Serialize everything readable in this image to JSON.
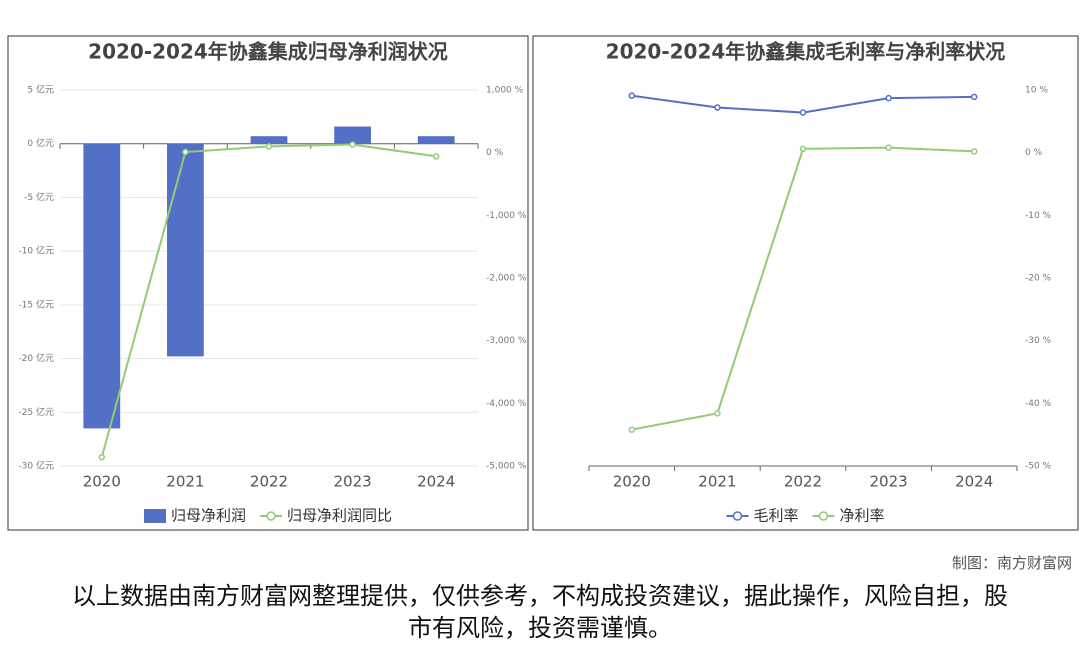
{
  "chart_data": [
    {
      "type": "bar",
      "title": "2020-2024年协鑫集成归母净利润状况",
      "categories": [
        "2020",
        "2021",
        "2022",
        "2023",
        "2024"
      ],
      "series": [
        {
          "name": "归母净利润",
          "type": "bar",
          "color": "#5470c6",
          "values": [
            -26.5,
            -19.8,
            0.7,
            1.6,
            0.7
          ]
        },
        {
          "name": "归母净利润同比",
          "type": "line",
          "axis": "y2",
          "color": "#91cc75",
          "values": [
            -4860,
            10,
            100,
            130,
            -60
          ]
        }
      ],
      "ylim": [
        -30,
        5
      ],
      "yticks": [
        {
          "value": 5,
          "label": "5 亿元"
        },
        {
          "value": 0,
          "label": "0 亿元"
        },
        {
          "value": -5,
          "label": "-5 亿元"
        },
        {
          "value": -10,
          "label": "-10 亿元"
        },
        {
          "value": -15,
          "label": "-15 亿元"
        },
        {
          "value": -20,
          "label": "-20 亿元"
        },
        {
          "value": -25,
          "label": "-25 亿元"
        },
        {
          "value": -30,
          "label": "-30 亿元"
        }
      ],
      "y2lim": [
        -5000,
        1000
      ],
      "y2ticks": [
        {
          "value": 1000,
          "label": "1,000 %"
        },
        {
          "value": 0,
          "label": "0 %"
        },
        {
          "value": -1000,
          "label": "-1,000 %"
        },
        {
          "value": -2000,
          "label": "-2,000 %"
        },
        {
          "value": -3000,
          "label": "-3,000 %"
        },
        {
          "value": -4000,
          "label": "-4,000 %"
        },
        {
          "value": -5000,
          "label": "-5,000 %"
        }
      ],
      "grid": true,
      "yaxis_position": "left",
      "legend": "bottom"
    },
    {
      "type": "line",
      "title": "2020-2024年协鑫集成毛利率与净利率状况",
      "categories": [
        "2020",
        "2021",
        "2022",
        "2023",
        "2024"
      ],
      "series": [
        {
          "name": "毛利率",
          "type": "line",
          "color": "#5470c6",
          "values": [
            9.1,
            7.2,
            6.4,
            8.7,
            8.9
          ]
        },
        {
          "name": "净利率",
          "type": "line",
          "color": "#91cc75",
          "values": [
            -44.2,
            -41.6,
            0.6,
            0.8,
            0.2
          ]
        }
      ],
      "ylim": [
        -50,
        10
      ],
      "yticks": [
        {
          "value": 10,
          "label": "10 %"
        },
        {
          "value": 0,
          "label": "0 %"
        },
        {
          "value": -10,
          "label": "-10 %"
        },
        {
          "value": -20,
          "label": "-20 %"
        },
        {
          "value": -30,
          "label": "-30 %"
        },
        {
          "value": -40,
          "label": "-40 %"
        },
        {
          "value": -50,
          "label": "-50 %"
        }
      ],
      "grid": false,
      "yaxis_position": "right",
      "legend": "bottom"
    }
  ],
  "credit": "制图：南方财富网",
  "disclaimer": "以上数据由南方财富网整理提供，仅供参考，不构成投资建议，据此操作，风险自担，股市有风险，投资需谨慎。"
}
